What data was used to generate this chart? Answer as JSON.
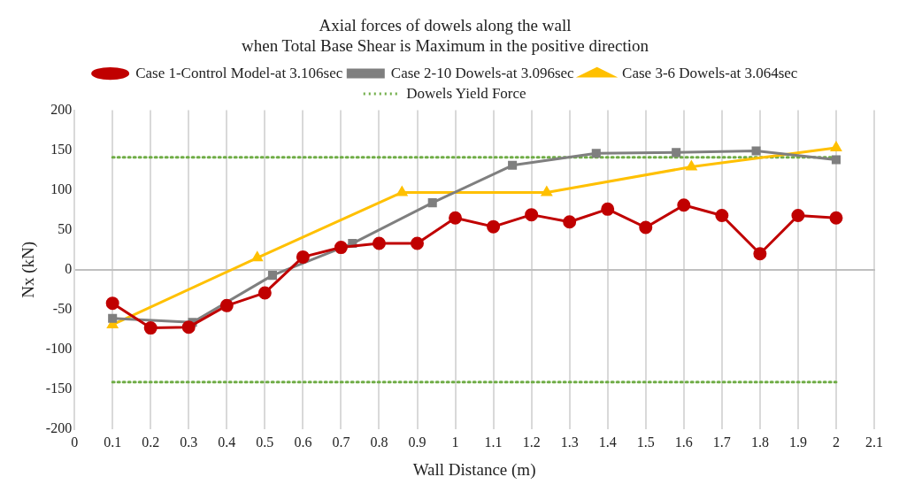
{
  "chart_data": {
    "type": "line",
    "title": "Axial forces of dowels along the wall\nwhen Total Base Shear is Maximum in the positive direction",
    "xlabel": "Wall Distance (m)",
    "ylabel": "Nx (kN)",
    "xlim": [
      0,
      2.1
    ],
    "xticks": [
      0,
      0.1,
      0.2,
      0.3,
      0.4,
      0.5,
      0.6,
      0.7,
      0.8,
      0.9,
      1,
      1.1,
      1.2,
      1.3,
      1.4,
      1.5,
      1.6,
      1.7,
      1.8,
      1.9,
      2,
      2.1
    ],
    "ylim": [
      -200,
      200
    ],
    "yticks": [
      -200,
      -150,
      -100,
      -50,
      0,
      50,
      100,
      150,
      200
    ],
    "grid": "x",
    "legend": "top",
    "series": [
      {
        "name": "Case 1-Control Model-at 3.106sec",
        "color": "#c00000",
        "marker": "circle",
        "x": [
          0.1,
          0.2,
          0.3,
          0.4,
          0.5,
          0.6,
          0.7,
          0.8,
          0.9,
          1,
          1.1,
          1.2,
          1.3,
          1.4,
          1.5,
          1.6,
          1.7,
          1.8,
          1.9,
          2
        ],
        "values": [
          -42,
          -73,
          -72,
          -45,
          -29,
          16,
          28,
          33,
          33,
          65,
          54,
          69,
          60,
          76,
          53,
          81,
          68,
          20,
          68,
          65
        ]
      },
      {
        "name": "Case 2-10 Dowels-at 3.096sec",
        "color": "#7f7f7f",
        "marker": "square",
        "x": [
          0.1,
          0.31,
          0.52,
          0.73,
          0.94,
          1.15,
          1.37,
          1.58,
          1.79,
          2
        ],
        "values": [
          -61,
          -66,
          -7,
          33,
          84,
          131,
          146,
          147,
          149,
          138
        ]
      },
      {
        "name": "Case 3-6 Dowels-at 3.064sec",
        "color": "#ffc000",
        "marker": "triangle",
        "x": [
          0.1,
          0.48,
          0.86,
          1.24,
          1.62,
          2
        ],
        "values": [
          -69,
          15,
          97,
          97,
          129,
          153
        ]
      },
      {
        "name": "Dowels Yield Force",
        "color": "#70ad47",
        "marker": "none",
        "line_style": "dotted",
        "x": [
          0.1,
          2
        ],
        "values": [
          141,
          141
        ]
      },
      {
        "color": "#70ad47",
        "marker": "none",
        "line_style": "dotted",
        "x": [
          0.1,
          2
        ],
        "values": [
          -141,
          -141
        ]
      }
    ]
  }
}
